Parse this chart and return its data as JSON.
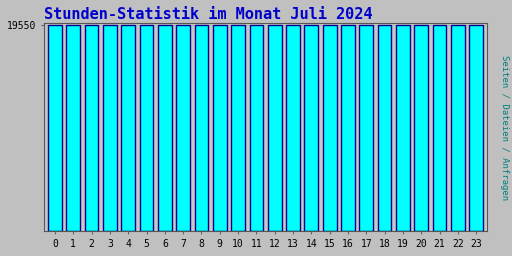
{
  "title": "Stunden-Statistik im Monat Juli 2024",
  "title_color": "#0000cc",
  "ylabel": "Seiten / Dateien / Anfragen",
  "ylabel_color": "#008080",
  "background_color": "#c0c0c0",
  "plot_bg_color": "#c8c8c8",
  "bar_fill_color": "#00ffff",
  "bar_edge_color": "#00008b",
  "bar_edge_color2": "#006400",
  "categories": [
    0,
    1,
    2,
    3,
    4,
    5,
    6,
    7,
    8,
    9,
    10,
    11,
    12,
    13,
    14,
    15,
    16,
    17,
    18,
    19,
    20,
    21,
    22,
    23
  ],
  "values": [
    19510,
    19495,
    19490,
    19492,
    19530,
    19528,
    19548,
    19555,
    19555,
    19545,
    19543,
    19540,
    19535,
    19527,
    19520,
    19520,
    19523,
    19523,
    19550,
    19530,
    19490,
    19487,
    19500,
    19495
  ],
  "ylim_min": 0,
  "ylim_max": 19700,
  "yticks": [
    19550
  ],
  "ytick_labels": [
    "19550"
  ],
  "font_family": "monospace",
  "font_size_title": 11,
  "font_size_ticks": 7,
  "font_size_ylabel": 6.5
}
